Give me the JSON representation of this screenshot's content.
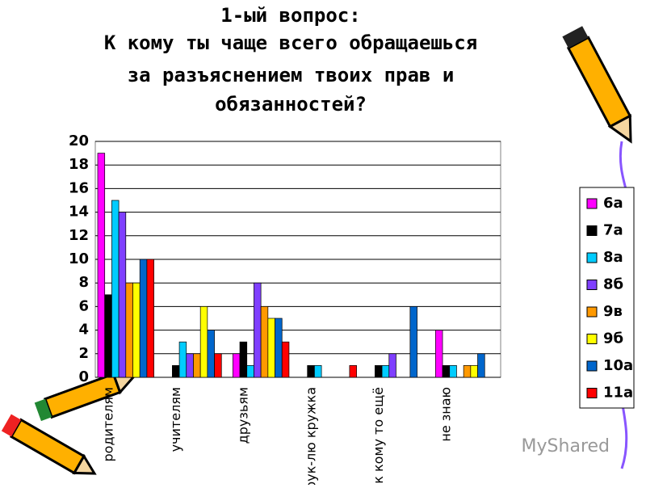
{
  "chart_data": {
    "type": "bar",
    "title": [
      "1-ый вопрос:",
      "К кому ты чаще всего обращаешься",
      "за разъяснением твоих прав и",
      "обязанностей?"
    ],
    "categories": [
      "родителям",
      "учителям",
      "друзьям",
      "рук-лю кружка",
      "к кому то ещё",
      "не знаю"
    ],
    "series": [
      {
        "name": "6а",
        "color": "#ff00ff",
        "values": [
          19,
          0,
          2,
          0,
          0,
          4
        ]
      },
      {
        "name": "7а",
        "color": "#000000",
        "values": [
          7,
          1,
          3,
          1,
          1,
          1
        ]
      },
      {
        "name": "8а",
        "color": "#00ccff",
        "values": [
          15,
          3,
          1,
          1,
          1,
          1
        ]
      },
      {
        "name": "8б",
        "color": "#7f3fff",
        "values": [
          14,
          2,
          8,
          0,
          2,
          0
        ]
      },
      {
        "name": "9в",
        "color": "#ff9900",
        "values": [
          8,
          2,
          6,
          0,
          0,
          1
        ]
      },
      {
        "name": "9б",
        "color": "#ffff00",
        "values": [
          8,
          6,
          5,
          0,
          0,
          1
        ]
      },
      {
        "name": "10а",
        "color": "#0066cc",
        "values": [
          10,
          4,
          5,
          0,
          6,
          2
        ]
      },
      {
        "name": "11а",
        "color": "#ff0000",
        "values": [
          10,
          2,
          3,
          1,
          0,
          0
        ]
      }
    ],
    "ylim": [
      0,
      20
    ],
    "yticks": [
      0,
      2,
      4,
      6,
      8,
      10,
      12,
      14,
      16,
      18,
      20
    ],
    "grid": true,
    "legend": "right",
    "watermark": "MyShared"
  }
}
